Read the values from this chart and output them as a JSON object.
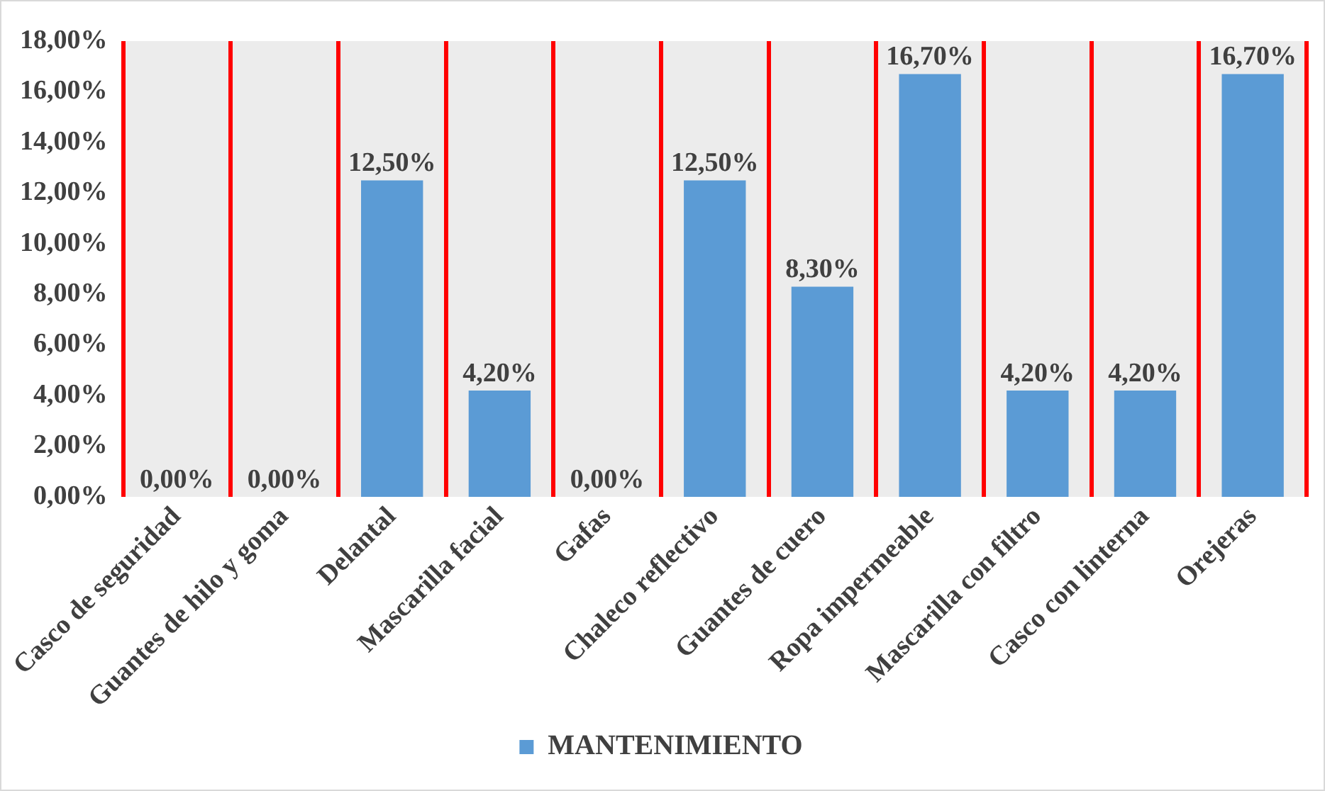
{
  "chart_data": {
    "type": "bar",
    "categories": [
      "Casco de seguridad",
      "Guantes de hilo y goma",
      "Delantal",
      "Mascarilla facial",
      "Gafas",
      "Chaleco reflectivo",
      "Guantes de cuero",
      "Ropa impermeable",
      "Mascarilla con filtro",
      "Casco con linterna",
      "Orejeras"
    ],
    "series": [
      {
        "name": "MANTENIMIENTO",
        "color": "#5b9bd5",
        "values": [
          0,
          0,
          12.5,
          4.2,
          0,
          12.5,
          8.3,
          16.7,
          4.2,
          4.2,
          16.7
        ],
        "value_labels": [
          "0,00%",
          "0,00%",
          "12,50%",
          "4,20%",
          "0,00%",
          "12,50%",
          "8,30%",
          "16,70%",
          "4,20%",
          "4,20%",
          "16,70%"
        ]
      }
    ],
    "ylim": [
      0,
      18
    ],
    "yticks": [
      {
        "value": 0,
        "label": "0,00%"
      },
      {
        "value": 2,
        "label": "2,00%"
      },
      {
        "value": 4,
        "label": "4,00%"
      },
      {
        "value": 6,
        "label": "6,00%"
      },
      {
        "value": 8,
        "label": "8,00%"
      },
      {
        "value": 10,
        "label": "10,00%"
      },
      {
        "value": 12,
        "label": "12,00%"
      },
      {
        "value": 14,
        "label": "14,00%"
      },
      {
        "value": 16,
        "label": "16,00%"
      },
      {
        "value": 18,
        "label": "18,00%"
      }
    ],
    "grid": "x",
    "legend": "bottom"
  }
}
